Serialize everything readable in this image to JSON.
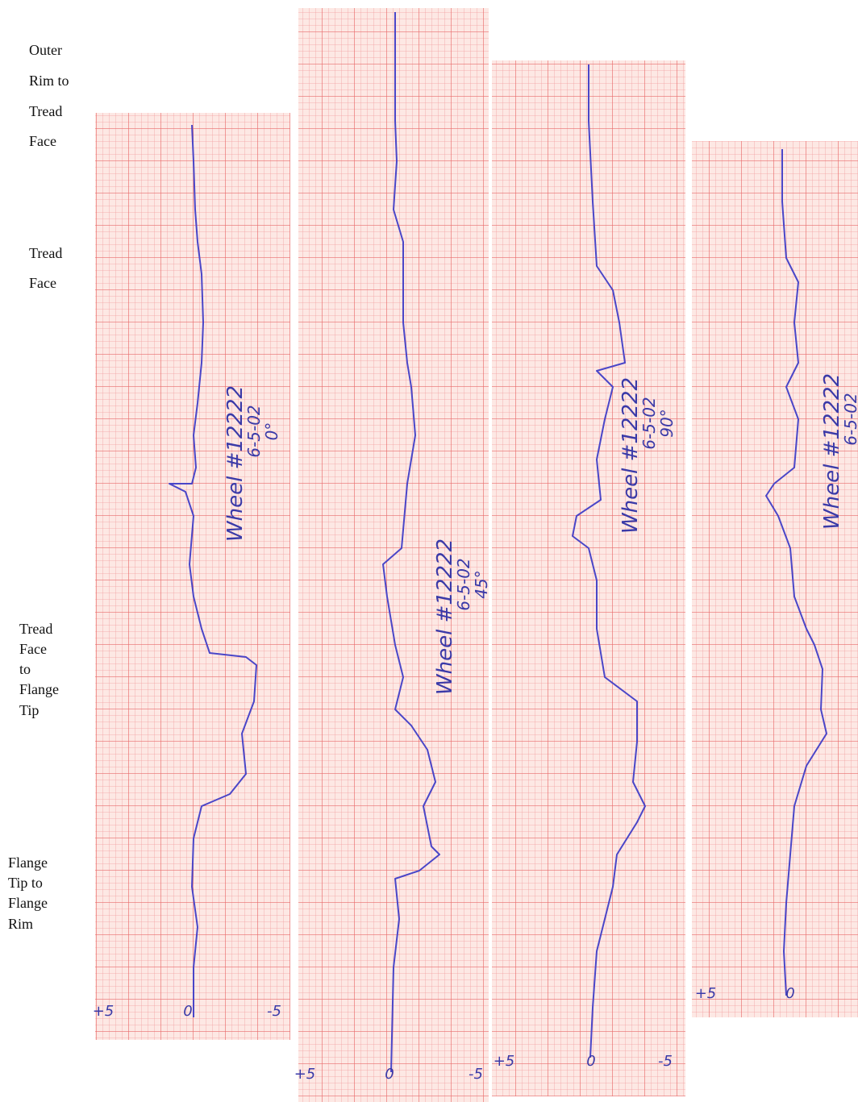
{
  "side_labels": [
    {
      "lines": [
        "Outer",
        "Rim to",
        "Tread",
        "Face"
      ]
    },
    {
      "lines": [
        "Tread",
        "Face"
      ]
    },
    {
      "lines": [
        "Tread",
        "Face",
        "to",
        "Flange",
        "Tip"
      ]
    },
    {
      "lines": [
        "Flange",
        "Tip to",
        "Flange",
        "Rim"
      ]
    }
  ],
  "strips": [
    {
      "scale": [
        "+5",
        "0",
        "-5"
      ],
      "note": [
        "Wheel #12222",
        "6-5-02",
        "0°"
      ]
    },
    {
      "scale": [
        "+5",
        "0",
        "-5"
      ],
      "note": [
        "Wheel #12222",
        "6-5-02",
        "45°"
      ]
    },
    {
      "scale": [
        "+5",
        "0",
        "-5"
      ],
      "note": [
        "Wheel #12222",
        "6-5-02",
        "90°"
      ]
    },
    {
      "scale": [
        "+5",
        "0"
      ],
      "note": [
        "Wheel #12222",
        "6-5-02"
      ]
    }
  ]
}
